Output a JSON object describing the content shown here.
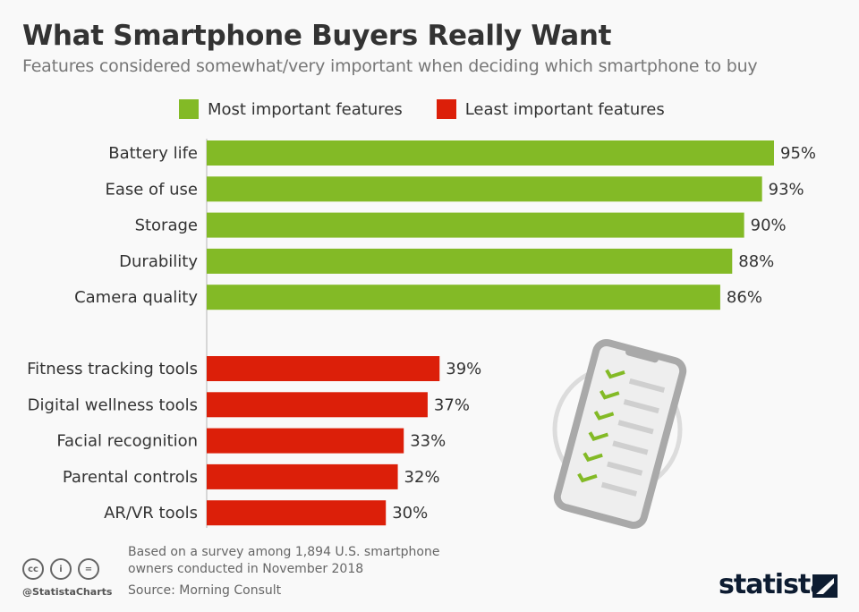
{
  "title": "What Smartphone Buyers Really Want",
  "subtitle": "Features considered somewhat/very important when deciding which smartphone to buy",
  "chart_data": {
    "type": "bar",
    "orientation": "horizontal",
    "series": [
      {
        "name": "Most important features",
        "color": "#83ba26",
        "categories": [
          "Battery life",
          "Ease of use",
          "Storage",
          "Durability",
          "Camera quality"
        ],
        "values": [
          95,
          93,
          90,
          88,
          86
        ]
      },
      {
        "name": "Least important features",
        "color": "#dc1f09",
        "categories": [
          "Fitness tracking tools",
          "Digital wellness tools",
          "Facial recognition",
          "Parental controls",
          "AR/VR tools"
        ],
        "values": [
          39,
          37,
          33,
          32,
          30
        ]
      }
    ],
    "value_suffix": "%",
    "xlim": [
      0,
      100
    ],
    "legend": "top",
    "grid": false
  },
  "footer": {
    "note_line1": "Based on a survey among 1,894 U.S. smartphone",
    "note_line2": "owners conducted in November 2018",
    "source": "Source: Morning Consult",
    "handle": "@StatistaCharts",
    "logo": "statista"
  }
}
